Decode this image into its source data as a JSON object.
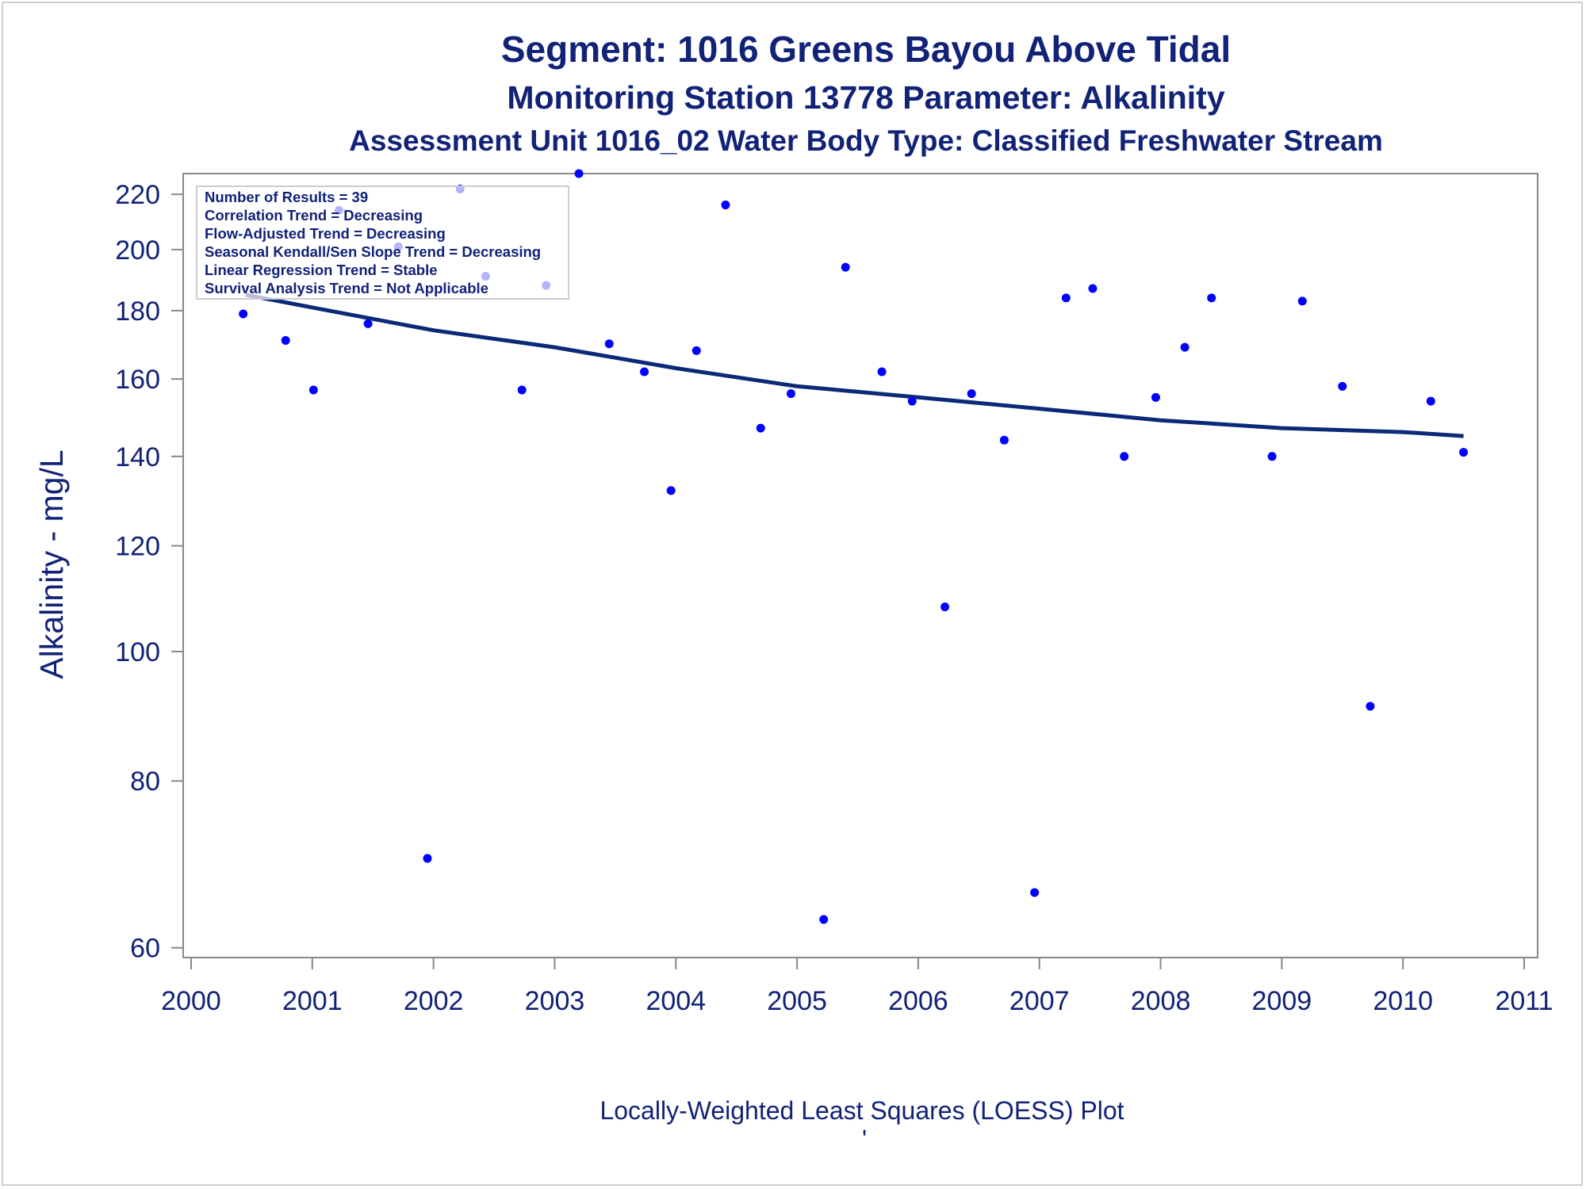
{
  "titles": {
    "line1": "Segment: 1016  Greens Bayou Above Tidal",
    "line2": "Monitoring Station 13778 Parameter: Alkalinity",
    "line3": "Assessment Unit 1016_02   Water Body Type: Classified Freshwater Stream"
  },
  "inset": {
    "lines": [
      "Number of Results = 39",
      "Correlation Trend = Decreasing",
      "Flow-Adjusted Trend = Decreasing",
      "Seasonal Kendall/Sen Slope Trend = Decreasing",
      "Linear Regression Trend = Stable",
      "Survival Analysis Trend = Not Applicable"
    ]
  },
  "footer": {
    "caption": "Locally-Weighted Least Squares (LOESS) Plot",
    "mark": "'"
  },
  "colors": {
    "text": "#112277",
    "points": "#0000ff",
    "trend_line": "#0a2a78",
    "axis": "#888888"
  },
  "chart_data": {
    "type": "scatter",
    "title": "Segment: 1016  Greens Bayou Above Tidal",
    "xlabel": "",
    "ylabel": "Alkalinity - mg/L",
    "x_scale": "linear (year)",
    "y_scale": "log",
    "xlim": [
      2000,
      2011
    ],
    "ylim": [
      59,
      228
    ],
    "x_ticks": [
      2000,
      2001,
      2002,
      2003,
      2004,
      2005,
      2006,
      2007,
      2008,
      2009,
      2010,
      2011
    ],
    "y_ticks": [
      60,
      80,
      100,
      120,
      140,
      160,
      180,
      200,
      220
    ],
    "grid": false,
    "series": [
      {
        "type": "scatter",
        "points": [
          {
            "x": 2000.43,
            "y": 179
          },
          {
            "x": 2000.78,
            "y": 171
          },
          {
            "x": 2001.01,
            "y": 157
          },
          {
            "x": 2001.22,
            "y": 214
          },
          {
            "x": 2001.46,
            "y": 176
          },
          {
            "x": 2001.71,
            "y": 201
          },
          {
            "x": 2001.95,
            "y": 70
          },
          {
            "x": 2002.22,
            "y": 222
          },
          {
            "x": 2002.43,
            "y": 191
          },
          {
            "x": 2002.73,
            "y": 157
          },
          {
            "x": 2002.93,
            "y": 188
          },
          {
            "x": 2003.2,
            "y": 228
          },
          {
            "x": 2003.45,
            "y": 170
          },
          {
            "x": 2003.74,
            "y": 162
          },
          {
            "x": 2003.96,
            "y": 132
          },
          {
            "x": 2004.17,
            "y": 168
          },
          {
            "x": 2004.41,
            "y": 216
          },
          {
            "x": 2004.7,
            "y": 147
          },
          {
            "x": 2004.95,
            "y": 156
          },
          {
            "x": 2005.22,
            "y": 63
          },
          {
            "x": 2005.4,
            "y": 194
          },
          {
            "x": 2005.7,
            "y": 162
          },
          {
            "x": 2005.95,
            "y": 154
          },
          {
            "x": 2006.22,
            "y": 108
          },
          {
            "x": 2006.44,
            "y": 156
          },
          {
            "x": 2006.71,
            "y": 144
          },
          {
            "x": 2006.96,
            "y": 66
          },
          {
            "x": 2007.22,
            "y": 184
          },
          {
            "x": 2007.44,
            "y": 187
          },
          {
            "x": 2007.7,
            "y": 140
          },
          {
            "x": 2007.96,
            "y": 155
          },
          {
            "x": 2008.2,
            "y": 169
          },
          {
            "x": 2008.42,
            "y": 184
          },
          {
            "x": 2008.92,
            "y": 140
          },
          {
            "x": 2009.17,
            "y": 183
          },
          {
            "x": 2009.5,
            "y": 158
          },
          {
            "x": 2009.73,
            "y": 91
          },
          {
            "x": 2010.23,
            "y": 154
          },
          {
            "x": 2010.5,
            "y": 141
          }
        ]
      },
      {
        "type": "line",
        "points": [
          {
            "x": 2000.45,
            "y": 185
          },
          {
            "x": 2001.0,
            "y": 181
          },
          {
            "x": 2002.0,
            "y": 174
          },
          {
            "x": 2003.0,
            "y": 169
          },
          {
            "x": 2004.0,
            "y": 163
          },
          {
            "x": 2005.0,
            "y": 158
          },
          {
            "x": 2006.0,
            "y": 155
          },
          {
            "x": 2007.0,
            "y": 152
          },
          {
            "x": 2008.0,
            "y": 149
          },
          {
            "x": 2009.0,
            "y": 147
          },
          {
            "x": 2010.0,
            "y": 146
          },
          {
            "x": 2010.5,
            "y": 145
          }
        ]
      }
    ]
  }
}
